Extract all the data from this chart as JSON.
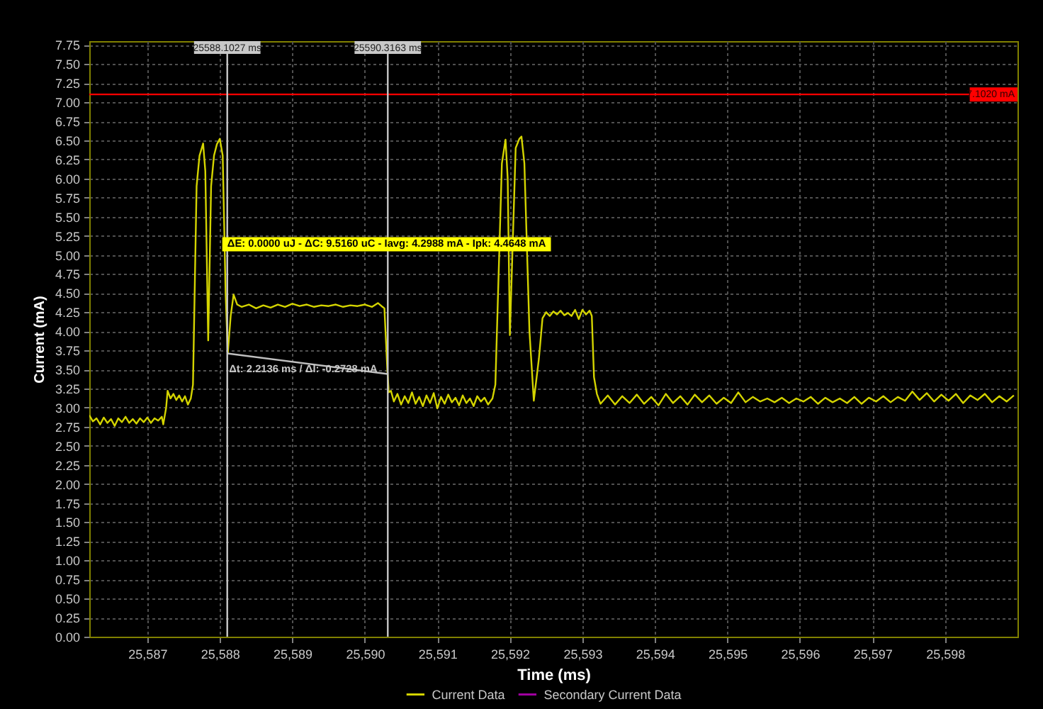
{
  "chart_data": {
    "type": "line",
    "xlabel": "Time (ms)",
    "ylabel": "Current (mA)",
    "xlim": [
      25586.2,
      25599.0
    ],
    "ylim": [
      0,
      7.8
    ],
    "xticks": [
      {
        "value": 25587,
        "label": "25,587"
      },
      {
        "value": 25588,
        "label": "25,588"
      },
      {
        "value": 25589,
        "label": "25,589"
      },
      {
        "value": 25590,
        "label": "25,590"
      },
      {
        "value": 25591,
        "label": "25,591"
      },
      {
        "value": 25592,
        "label": "25,592"
      },
      {
        "value": 25593,
        "label": "25,593"
      },
      {
        "value": 25594,
        "label": "25,594"
      },
      {
        "value": 25595,
        "label": "25,595"
      },
      {
        "value": 25596,
        "label": "25,596"
      },
      {
        "value": 25597,
        "label": "25,597"
      },
      {
        "value": 25598,
        "label": "25,598"
      }
    ],
    "yticks": [
      {
        "value": 0,
        "label": "0.00"
      },
      0.25,
      {
        "value": 0.5,
        "label": "0.50"
      },
      0.75,
      {
        "value": 1,
        "label": "1.00"
      },
      1.25,
      {
        "value": 1.5,
        "label": "1.50"
      },
      1.75,
      {
        "value": 2,
        "label": "2.00"
      },
      2.25,
      {
        "value": 2.5,
        "label": "2.50"
      },
      2.75,
      {
        "value": 3,
        "label": "3.00"
      },
      3.25,
      {
        "value": 3.5,
        "label": "3.50"
      },
      3.75,
      {
        "value": 4,
        "label": "4.00"
      },
      4.25,
      {
        "value": 4.5,
        "label": "4.50"
      },
      4.75,
      {
        "value": 5,
        "label": "5.00"
      },
      5.25,
      {
        "value": 5.5,
        "label": "5.50"
      },
      5.75,
      {
        "value": 6,
        "label": "6.00"
      },
      6.25,
      {
        "value": 6.5,
        "label": "6.50"
      },
      6.75,
      {
        "value": 7,
        "label": "7.00"
      },
      7.25,
      {
        "value": 7.5,
        "label": "7.50"
      },
      7.75
    ],
    "grid": true,
    "legend": "bottom",
    "marker": "none",
    "line_style": "solid",
    "series": [
      {
        "name": "Current Data",
        "color": "#d4d400",
        "x": [
          25586.2,
          25586.25,
          25586.3,
          25586.35,
          25586.4,
          25586.45,
          25586.5,
          25586.55,
          25586.6,
          25586.65,
          25586.7,
          25586.75,
          25586.8,
          25586.85,
          25586.9,
          25586.95,
          25587.0,
          25587.05,
          25587.1,
          25587.15,
          25587.2,
          25587.22,
          25587.26,
          25587.28,
          25587.32,
          25587.36,
          25587.4,
          25587.44,
          25587.48,
          25587.52,
          25587.56,
          25587.6,
          25587.63,
          25587.68,
          25587.72,
          25587.77,
          25587.8,
          25587.84,
          25587.88,
          25587.92,
          25587.96,
          25588.0,
          25588.04,
          25588.08,
          25588.11,
          25588.15,
          25588.19,
          25588.24,
          25588.3,
          25588.4,
          25588.5,
          25588.6,
          25588.7,
          25588.8,
          25588.9,
          25589.0,
          25589.1,
          25589.2,
          25589.3,
          25589.4,
          25589.5,
          25589.6,
          25589.7,
          25589.8,
          25589.9,
          25590.0,
          25590.1,
          25590.18,
          25590.23,
          25590.27,
          25590.31,
          25590.33,
          25590.36,
          25590.4,
          25590.45,
          25590.5,
          25590.55,
          25590.6,
          25590.65,
          25590.7,
          25590.75,
          25590.8,
          25590.85,
          25590.9,
          25590.95,
          25591.0,
          25591.05,
          25591.1,
          25591.15,
          25591.2,
          25591.25,
          25591.3,
          25591.35,
          25591.4,
          25591.45,
          25591.5,
          25591.55,
          25591.6,
          25591.65,
          25591.7,
          25591.76,
          25591.8,
          25591.89,
          25591.94,
          25591.97,
          25592.0,
          25592.08,
          25592.13,
          25592.16,
          25592.2,
          25592.27,
          25592.33,
          25592.4,
          25592.45,
          25592.5,
          25592.55,
          25592.6,
          25592.65,
          25592.7,
          25592.75,
          25592.8,
          25592.85,
          25592.9,
          25592.95,
          25593.0,
          25593.05,
          25593.1,
          25593.13,
          25593.16,
          25593.2,
          25593.25,
          25593.35,
          25593.45,
          25593.55,
          25593.65,
          25593.75,
          25593.85,
          25593.95,
          25594.05,
          25594.15,
          25594.25,
          25594.35,
          25594.45,
          25594.55,
          25594.65,
          25594.75,
          25594.85,
          25594.95,
          25595.05,
          25595.15,
          25595.25,
          25595.35,
          25595.45,
          25595.55,
          25595.65,
          25595.75,
          25595.85,
          25595.95,
          25596.05,
          25596.15,
          25596.25,
          25596.35,
          25596.45,
          25596.55,
          25596.65,
          25596.75,
          25596.85,
          25596.95,
          25597.05,
          25597.15,
          25597.25,
          25597.35,
          25597.45,
          25597.55,
          25597.65,
          25597.75,
          25597.85,
          25597.95,
          25598.05,
          25598.15,
          25598.25,
          25598.35,
          25598.45,
          25598.55,
          25598.65,
          25598.75,
          25598.85,
          25598.95
        ],
        "values": [
          2.9,
          2.82,
          2.86,
          2.78,
          2.87,
          2.8,
          2.85,
          2.76,
          2.86,
          2.81,
          2.88,
          2.8,
          2.85,
          2.79,
          2.86,
          2.81,
          2.87,
          2.8,
          2.86,
          2.83,
          2.88,
          2.78,
          3.0,
          3.22,
          3.12,
          3.18,
          3.1,
          3.16,
          3.08,
          3.15,
          3.04,
          3.12,
          3.3,
          5.9,
          6.3,
          6.46,
          6.1,
          3.88,
          5.9,
          6.3,
          6.45,
          6.52,
          6.3,
          4.5,
          3.71,
          4.2,
          4.48,
          4.35,
          4.32,
          4.35,
          4.3,
          4.34,
          4.31,
          4.35,
          4.32,
          4.36,
          4.33,
          4.35,
          4.32,
          4.34,
          4.33,
          4.35,
          4.32,
          4.34,
          4.33,
          4.35,
          4.32,
          4.37,
          4.33,
          4.3,
          3.5,
          3.2,
          3.22,
          3.08,
          3.18,
          3.04,
          3.15,
          3.06,
          3.2,
          3.05,
          3.14,
          3.02,
          3.16,
          3.06,
          3.19,
          2.99,
          3.14,
          3.05,
          3.17,
          3.07,
          3.13,
          3.03,
          3.16,
          3.06,
          3.12,
          3.02,
          3.15,
          3.08,
          3.13,
          3.04,
          3.12,
          3.3,
          6.2,
          6.51,
          6.0,
          3.95,
          6.4,
          6.52,
          6.55,
          6.2,
          4.0,
          3.09,
          3.64,
          4.17,
          4.25,
          4.2,
          4.26,
          4.22,
          4.27,
          4.21,
          4.24,
          4.2,
          4.28,
          4.16,
          4.28,
          4.22,
          4.27,
          4.2,
          3.4,
          3.18,
          3.05,
          3.16,
          3.04,
          3.15,
          3.06,
          3.17,
          3.05,
          3.14,
          3.03,
          3.18,
          3.06,
          3.15,
          3.04,
          3.17,
          3.07,
          3.16,
          3.05,
          3.13,
          3.06,
          3.2,
          3.07,
          3.14,
          3.08,
          3.12,
          3.07,
          3.13,
          3.06,
          3.12,
          3.08,
          3.14,
          3.05,
          3.13,
          3.07,
          3.12,
          3.06,
          3.14,
          3.05,
          3.13,
          3.08,
          3.15,
          3.07,
          3.14,
          3.09,
          3.21,
          3.1,
          3.19,
          3.08,
          3.17,
          3.09,
          3.18,
          3.06,
          3.16,
          3.1,
          3.18,
          3.07,
          3.15,
          3.08,
          3.16
        ]
      },
      {
        "name": "Secondary Current Data",
        "color": "#a000a0"
      },
      {
        "type": "line",
        "color": "#c0c0c0",
        "x": [
          25588.1027,
          25590.3163
        ],
        "values": [
          3.71,
          3.44
        ]
      }
    ],
    "ref_lines": [
      {
        "axis": "y",
        "value": 7.102,
        "label": "7.1020 mA",
        "color": "#ff0000"
      },
      {
        "axis": "x",
        "value": 25588.1027,
        "label": "25588.1027 ms",
        "color": "#c8c8c8"
      },
      {
        "axis": "x",
        "value": 25590.3163,
        "label": "25590.3163 ms",
        "color": "#c8c8c8"
      }
    ],
    "annotations": [
      {
        "text": "ΔE: 0.0000 uJ - ΔC: 9.5160 uC - Iavg: 4.2988 mA - Ipk: 4.4648 mA",
        "x": 25590.3,
        "y": 5.14
      },
      {
        "text": "Δt: 2.2136 ms / ΔI: -0.2728 mA",
        "x": 25589.15,
        "y": 3.5
      }
    ]
  }
}
